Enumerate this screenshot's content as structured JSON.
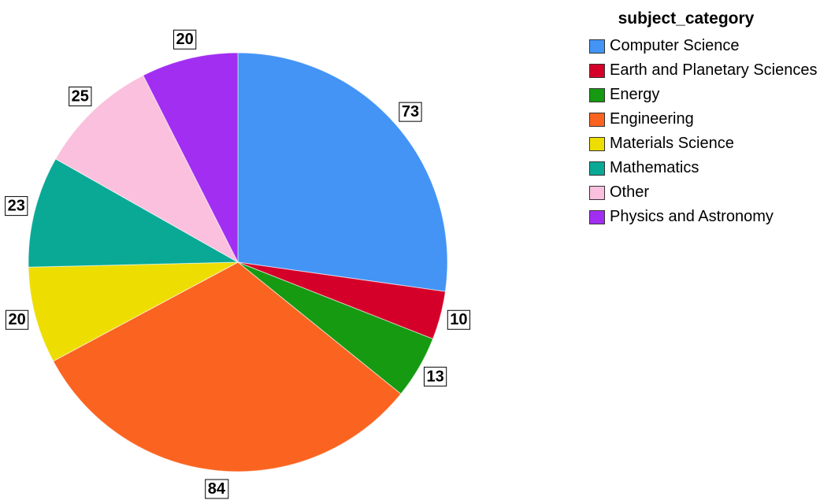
{
  "chart_data": {
    "type": "pie",
    "legend_title": "subject_category",
    "categories": [
      "Computer Science",
      "Earth and Planetary Sciences",
      "Energy",
      "Engineering",
      "Materials Science",
      "Mathematics",
      "Other",
      "Physics and Astronomy"
    ],
    "values": [
      73,
      10,
      13,
      84,
      20,
      23,
      25,
      20
    ],
    "colors": [
      "#4394f5",
      "#d4002a",
      "#169a12",
      "#fa6420",
      "#eedd00",
      "#0aa996",
      "#fbc0dd",
      "#a22ef2"
    ],
    "legend": "right"
  }
}
